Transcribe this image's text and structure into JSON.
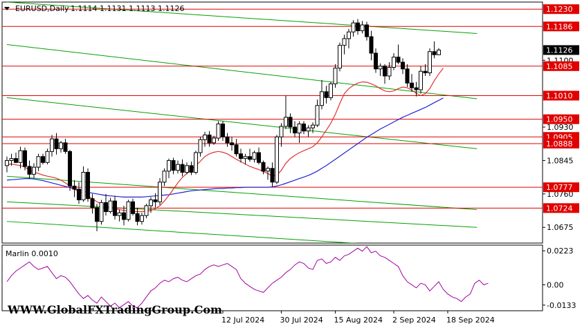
{
  "header": {
    "symbol": "EURUSD,Daily",
    "ohlc": "1.1114 1.1131 1.1113 1.1126"
  },
  "watermark": "WWW.GlobalFXTradingGroup.Com",
  "oscillator": {
    "label": "Marlin 0.0010",
    "ticks": [
      "0.0223",
      "0.00",
      "-0.0133"
    ],
    "tick_values": [
      0.0223,
      0.0,
      -0.0133
    ],
    "ylim": [
      -0.017,
      0.026
    ],
    "color": "#a000a0",
    "values": [
      0.002,
      0.006,
      0.009,
      0.011,
      0.013,
      0.015,
      0.012,
      0.01,
      0.011,
      0.012,
      0.008,
      0.004,
      0.006,
      0.005,
      0.002,
      -0.002,
      -0.006,
      -0.009,
      -0.007,
      -0.01,
      -0.012,
      -0.008,
      -0.011,
      -0.014,
      -0.012,
      -0.015,
      -0.013,
      -0.011,
      -0.014,
      -0.015,
      -0.012,
      -0.008,
      -0.004,
      -0.002,
      0.001,
      0.003,
      0.002,
      0.004,
      0.005,
      0.003,
      0.002,
      0.004,
      0.006,
      0.007,
      0.01,
      0.012,
      0.013,
      0.012,
      0.013,
      0.014,
      0.012,
      0.01,
      0.004,
      0.001,
      -0.001,
      -0.003,
      -0.004,
      -0.005,
      -0.002,
      0.001,
      0.003,
      0.005,
      0.008,
      0.01,
      0.013,
      0.015,
      0.014,
      0.011,
      0.01,
      0.016,
      0.017,
      0.014,
      0.015,
      0.018,
      0.016,
      0.019,
      0.02,
      0.022,
      0.024,
      0.022,
      0.025,
      0.021,
      0.022,
      0.019,
      0.018,
      0.016,
      0.014,
      0.012,
      0.006,
      0.002,
      0.0,
      -0.002,
      0.001,
      0.0,
      -0.004,
      -0.001,
      0.002,
      -0.003,
      -0.006,
      -0.008,
      -0.009,
      -0.011,
      -0.008,
      -0.006,
      0.001,
      0.003,
      0.0,
      0.001
    ]
  },
  "chart_data": {
    "type": "candlestick",
    "ylim": [
      1.0635,
      1.1248
    ],
    "x_tick_labels": [
      "12 Jul 2024",
      "30 Jul 2024",
      "15 Aug 2024",
      "2 Sep 2024",
      "18 Sep 2024"
    ],
    "x_tick_positions": [
      48,
      61,
      73,
      86,
      98
    ],
    "y_axis_labels": [
      {
        "text": "1.1100",
        "value": 1.11
      },
      {
        "text": "1.0930",
        "value": 1.093
      },
      {
        "text": "1.0845",
        "value": 1.0845
      },
      {
        "text": "1.0760",
        "value": 1.076
      },
      {
        "text": "1.0675",
        "value": 1.0675
      }
    ],
    "horizontal_levels": [
      1.123,
      1.1186,
      1.1085,
      1.101,
      1.095,
      1.0905,
      1.0888,
      1.0777,
      1.0724
    ],
    "level_labels": [
      "1.1230",
      "1.1186",
      "1.1085",
      "1.1010",
      "1.0950",
      "1.0905",
      "1.0888",
      "1.0777",
      "1.0724"
    ],
    "current_price": {
      "text": "1.1126",
      "value": 1.1126
    },
    "colors": {
      "levels": "#e00000",
      "label_bg": "#e00000",
      "channels": "#00a000",
      "ma_fast": "#e03030",
      "ma_slow": "#2020d0",
      "current_bg": "#000000",
      "bull": "#ffffff",
      "bear": "#000000"
    },
    "candles": [
      [
        1.0832,
        1.0855,
        1.0815,
        1.0845
      ],
      [
        1.0845,
        1.0862,
        1.0832,
        1.085
      ],
      [
        1.085,
        1.0865,
        1.0838,
        1.084
      ],
      [
        1.084,
        1.088,
        1.0825,
        1.087
      ],
      [
        1.087,
        1.0878,
        1.082,
        1.083
      ],
      [
        1.083,
        1.0845,
        1.0798,
        1.081
      ],
      [
        1.081,
        1.0838,
        1.08,
        1.0828
      ],
      [
        1.0828,
        1.0862,
        1.0818,
        1.0855
      ],
      [
        1.0855,
        1.0862,
        1.0835,
        1.084
      ],
      [
        1.084,
        1.0875,
        1.0835,
        1.0868
      ],
      [
        1.0868,
        1.091,
        1.0855,
        1.09
      ],
      [
        1.09,
        1.0915,
        1.086,
        1.0875
      ],
      [
        1.0875,
        1.0895,
        1.0865,
        1.089
      ],
      [
        1.089,
        1.09,
        1.0862,
        1.0868
      ],
      [
        1.0868,
        1.0872,
        1.0768,
        1.078
      ],
      [
        1.078,
        1.0795,
        1.0752,
        1.0772
      ],
      [
        1.0772,
        1.079,
        1.0735,
        1.0745
      ],
      [
        1.0745,
        1.083,
        1.074,
        1.0815
      ],
      [
        1.0815,
        1.0825,
        1.074,
        1.0748
      ],
      [
        1.0748,
        1.076,
        1.071,
        1.0725
      ],
      [
        1.0725,
        1.0735,
        1.0665,
        1.069
      ],
      [
        1.069,
        1.0745,
        1.0682,
        1.0738
      ],
      [
        1.0738,
        1.076,
        1.0705,
        1.0715
      ],
      [
        1.0715,
        1.075,
        1.071,
        1.0742
      ],
      [
        1.0742,
        1.0755,
        1.0695,
        1.0705
      ],
      [
        1.0705,
        1.072,
        1.069,
        1.0712
      ],
      [
        1.0712,
        1.073,
        1.068,
        1.0695
      ],
      [
        1.0695,
        1.0745,
        1.069,
        1.074
      ],
      [
        1.074,
        1.0748,
        1.0705,
        1.071
      ],
      [
        1.071,
        1.0725,
        1.068,
        1.069
      ],
      [
        1.069,
        1.0712,
        1.0682,
        1.0705
      ],
      [
        1.0705,
        1.0735,
        1.0698,
        1.073
      ],
      [
        1.073,
        1.0752,
        1.0712,
        1.0745
      ],
      [
        1.0745,
        1.0762,
        1.0725,
        1.074
      ],
      [
        1.074,
        1.08,
        1.0732,
        1.079
      ],
      [
        1.079,
        1.0825,
        1.078,
        1.0818
      ],
      [
        1.0818,
        1.085,
        1.08,
        1.0845
      ],
      [
        1.0845,
        1.0852,
        1.081,
        1.082
      ],
      [
        1.082,
        1.0845,
        1.0812,
        1.0835
      ],
      [
        1.0835,
        1.0848,
        1.0805,
        1.0815
      ],
      [
        1.0815,
        1.084,
        1.081,
        1.0832
      ],
      [
        1.0832,
        1.0842,
        1.0808,
        1.0815
      ],
      [
        1.0815,
        1.087,
        1.081,
        1.0865
      ],
      [
        1.0865,
        1.0905,
        1.0855,
        1.0898
      ],
      [
        1.0898,
        1.0918,
        1.088,
        1.091
      ],
      [
        1.091,
        1.092,
        1.088,
        1.089
      ],
      [
        1.089,
        1.0908,
        1.0885,
        1.0902
      ],
      [
        1.0902,
        1.0945,
        1.0895,
        1.0938
      ],
      [
        1.0938,
        1.0945,
        1.0895,
        1.0905
      ],
      [
        1.0905,
        1.0915,
        1.088,
        1.089
      ],
      [
        1.089,
        1.0905,
        1.087,
        1.0885
      ],
      [
        1.0885,
        1.09,
        1.0855,
        1.0862
      ],
      [
        1.0862,
        1.0875,
        1.084,
        1.085
      ],
      [
        1.085,
        1.0862,
        1.0835,
        1.0855
      ],
      [
        1.0855,
        1.0875,
        1.0842,
        1.0848
      ],
      [
        1.0848,
        1.087,
        1.084,
        1.0865
      ],
      [
        1.0865,
        1.0878,
        1.0835,
        1.084
      ],
      [
        1.084,
        1.0845,
        1.081,
        1.0818
      ],
      [
        1.0818,
        1.083,
        1.0796,
        1.0825
      ],
      [
        1.0825,
        1.084,
        1.0778,
        1.079
      ],
      [
        1.079,
        1.091,
        1.0785,
        1.0905
      ],
      [
        1.0905,
        1.094,
        1.088,
        1.0932
      ],
      [
        1.0932,
        1.101,
        1.0925,
        1.0955
      ],
      [
        1.0955,
        1.0965,
        1.0915,
        1.093
      ],
      [
        1.093,
        1.0945,
        1.0905,
        1.0915
      ],
      [
        1.0915,
        1.0945,
        1.089,
        1.0938
      ],
      [
        1.0938,
        1.0945,
        1.0912,
        1.092
      ],
      [
        1.092,
        1.0935,
        1.0905,
        1.0928
      ],
      [
        1.0928,
        1.0942,
        1.0915,
        1.0935
      ],
      [
        1.0935,
        1.1,
        1.093,
        1.0985
      ],
      [
        1.0985,
        1.105,
        1.0975,
        1.102
      ],
      [
        1.102,
        1.1035,
        1.099,
        1.1005
      ],
      [
        1.1005,
        1.1045,
        1.0998,
        1.104
      ],
      [
        1.104,
        1.109,
        1.103,
        1.108
      ],
      [
        1.108,
        1.1145,
        1.1072,
        1.1138
      ],
      [
        1.1138,
        1.1165,
        1.1115,
        1.1155
      ],
      [
        1.1155,
        1.118,
        1.113,
        1.1172
      ],
      [
        1.1172,
        1.1202,
        1.116,
        1.1195
      ],
      [
        1.1195,
        1.1205,
        1.1165,
        1.1175
      ],
      [
        1.1175,
        1.12,
        1.1168,
        1.119
      ],
      [
        1.119,
        1.1198,
        1.115,
        1.116
      ],
      [
        1.116,
        1.1175,
        1.11,
        1.1118
      ],
      [
        1.1118,
        1.113,
        1.1068,
        1.1078
      ],
      [
        1.1078,
        1.1092,
        1.106,
        1.1085
      ],
      [
        1.1085,
        1.109,
        1.104,
        1.106
      ],
      [
        1.106,
        1.1095,
        1.105,
        1.1082
      ],
      [
        1.1082,
        1.1118,
        1.1075,
        1.1108
      ],
      [
        1.1108,
        1.114,
        1.109,
        1.1095
      ],
      [
        1.1095,
        1.1105,
        1.1065,
        1.1078
      ],
      [
        1.1078,
        1.109,
        1.1032,
        1.1042
      ],
      [
        1.1042,
        1.1065,
        1.102,
        1.103
      ],
      [
        1.103,
        1.1045,
        1.1008,
        1.1025
      ],
      [
        1.1025,
        1.1085,
        1.1015,
        1.1072
      ],
      [
        1.1072,
        1.109,
        1.106,
        1.1068
      ],
      [
        1.1068,
        1.113,
        1.106,
        1.1122
      ],
      [
        1.1122,
        1.1148,
        1.1105,
        1.1114
      ],
      [
        1.1114,
        1.1131,
        1.1113,
        1.1126
      ]
    ],
    "ma_fast": [
      1.0835,
      1.0836,
      1.0834,
      1.0832,
      1.0828,
      1.082,
      1.0815,
      1.0812,
      1.0808,
      1.0805,
      1.0803,
      1.08,
      1.0795,
      1.0788,
      1.078,
      1.0772,
      1.0765,
      1.076,
      1.0755,
      1.0748,
      1.074,
      1.0735,
      1.073,
      1.0726,
      1.0722,
      1.072,
      1.0718,
      1.0717,
      1.0716,
      1.0715,
      1.0715,
      1.0716,
      1.0718,
      1.0722,
      1.073,
      1.0742,
      1.0756,
      1.0772,
      1.0788,
      1.0802,
      1.0812,
      1.0822,
      1.0832,
      1.0843,
      1.0855,
      1.0862,
      1.0866,
      1.0868,
      1.0866,
      1.0862,
      1.0855,
      1.0848,
      1.0842,
      1.0836,
      1.083,
      1.0826,
      1.0822,
      1.0817,
      1.0812,
      1.0805,
      1.0808,
      1.082,
      1.0838,
      1.085,
      1.0858,
      1.0865,
      1.087,
      1.0875,
      1.088,
      1.089,
      1.0905,
      1.0922,
      1.094,
      1.0962,
      1.099,
      1.1015,
      1.1028,
      1.1036,
      1.1042,
      1.1045,
      1.1044,
      1.104,
      1.1035,
      1.1028,
      1.1022,
      1.102,
      1.1022,
      1.1028,
      1.1032,
      1.103,
      1.1024,
      1.1016,
      1.101,
      1.1015,
      1.1028,
      1.1048,
      1.1065,
      1.108
    ],
    "ma_slow": [
      1.0795,
      1.0796,
      1.0797,
      1.0798,
      1.0799,
      1.0799,
      1.0798,
      1.0796,
      1.0794,
      1.0791,
      1.0788,
      1.0785,
      1.0782,
      1.0779,
      1.0776,
      1.0773,
      1.077,
      1.0767,
      1.0764,
      1.0762,
      1.076,
      1.0758,
      1.0756,
      1.0755,
      1.0754,
      1.0753,
      1.0752,
      1.0752,
      1.0752,
      1.0752,
      1.0752,
      1.0753,
      1.0754,
      1.0755,
      1.0756,
      1.0757,
      1.0758,
      1.076,
      1.0762,
      1.0764,
      1.0766,
      1.0768,
      1.0769,
      1.077,
      1.0771,
      1.0772,
      1.0773,
      1.0774,
      1.0774,
      1.0775,
      1.0775,
      1.0776,
      1.0776,
      1.0777,
      1.0777,
      1.0777,
      1.0777,
      1.0777,
      1.0777,
      1.0778,
      1.078,
      1.0783,
      1.0787,
      1.0791,
      1.0795,
      1.0799,
      1.0803,
      1.0807,
      1.0812,
      1.0818,
      1.0825,
      1.0832,
      1.084,
      1.0848,
      1.0856,
      1.0864,
      1.0872,
      1.088,
      1.0888,
      1.0896,
      1.0904,
      1.0911,
      1.0918,
      1.0925,
      1.0931,
      1.0937,
      1.0943,
      1.0949,
      1.0955,
      1.096,
      1.0965,
      1.097,
      1.0975,
      1.098,
      1.0986,
      1.0992,
      1.0998,
      1.1004
    ],
    "channel_lines": [
      {
        "from": [
          0,
          1.1248
        ],
        "to": [
          104.5,
          1.1168
        ]
      },
      {
        "from": [
          0,
          1.114
        ],
        "to": [
          104.5,
          1.1002
        ]
      },
      {
        "from": [
          0,
          1.1005
        ],
        "to": [
          104.5,
          1.0875
        ]
      },
      {
        "from": [
          0,
          1.0805
        ],
        "to": [
          104.5,
          1.072
        ]
      },
      {
        "from": [
          0,
          1.074
        ],
        "to": [
          104.5,
          1.0675
        ]
      },
      {
        "from": [
          0,
          1.069
        ],
        "to": [
          100.5,
          1.0618
        ]
      }
    ]
  }
}
